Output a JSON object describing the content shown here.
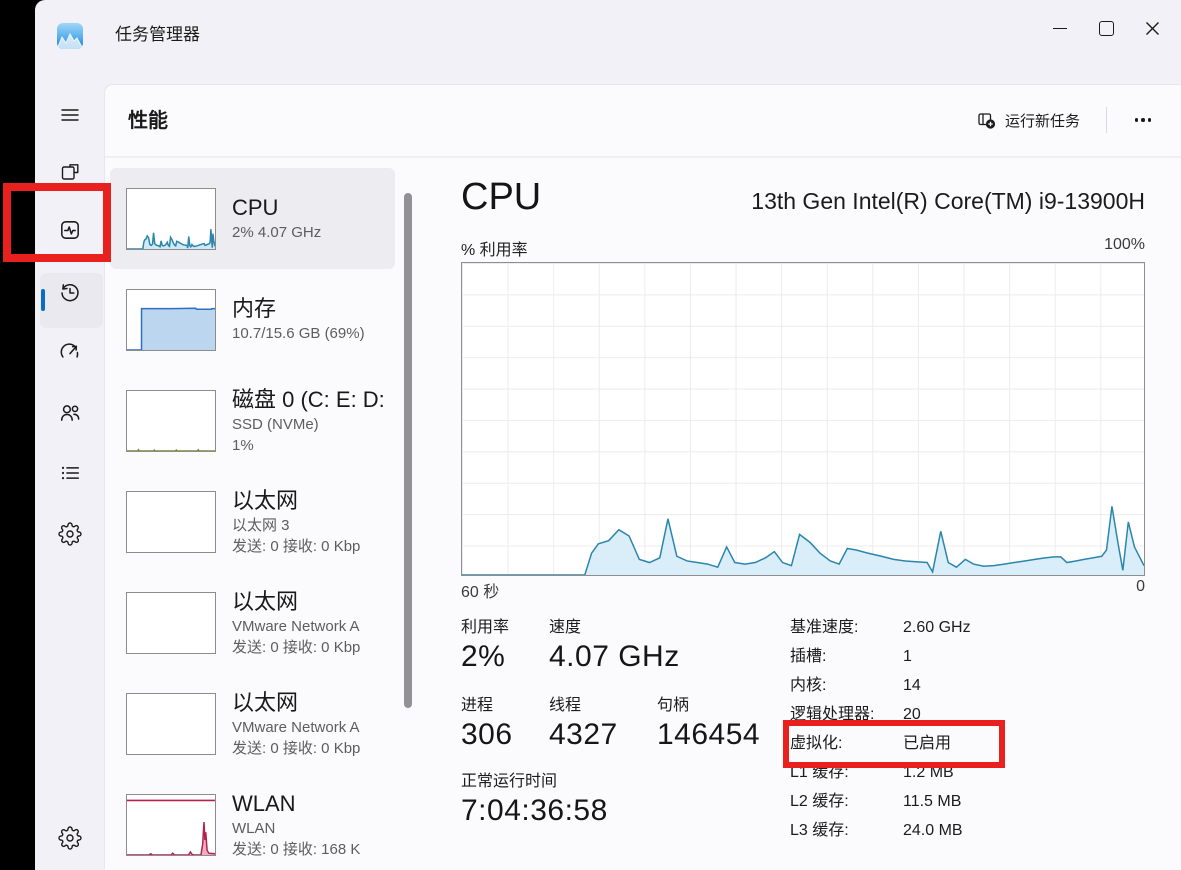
{
  "titlebar": {
    "app_title": "任务管理器",
    "app_icon": "task-manager-logo"
  },
  "window_controls": {
    "icons": [
      "minimize-icon",
      "maximize-icon",
      "close-icon"
    ]
  },
  "header": {
    "page_title": "性能",
    "run_new_task_label": "运行新任务",
    "run_new_task_icon": "new-task-icon",
    "more_icon": "more-options-icon"
  },
  "sidebar": {
    "items": [
      {
        "id": "menu",
        "icon": "hamburger-menu-icon"
      },
      {
        "id": "processes",
        "icon": "processes-icon"
      },
      {
        "id": "performance",
        "icon": "performance-icon",
        "selected": true
      },
      {
        "id": "app-history",
        "icon": "app-history-icon"
      },
      {
        "id": "startup-apps",
        "icon": "startup-apps-icon"
      },
      {
        "id": "users",
        "icon": "users-icon"
      },
      {
        "id": "details",
        "icon": "details-icon"
      },
      {
        "id": "services",
        "icon": "services-icon"
      }
    ],
    "footer_item": {
      "id": "settings",
      "icon": "settings-gear-icon"
    },
    "accent_color": "#0a6cc4"
  },
  "performance_list": {
    "items": [
      {
        "title": "CPU",
        "lines": [
          "2%  4.07 GHz"
        ],
        "selected": true,
        "chart": 1
      },
      {
        "title": "内存",
        "lines": [
          "10.7/15.6 GB (69%)"
        ],
        "chart": 2
      },
      {
        "title": "磁盘 0 (C: E: D:",
        "lines": [
          "SSD (NVMe)",
          "1%"
        ],
        "chart": 3
      },
      {
        "title": "以太网",
        "lines": [
          "以太网 3",
          "发送: 0 接收: 0 Kbp"
        ],
        "chart": 4
      },
      {
        "title": "以太网",
        "lines": [
          "VMware Network A",
          "发送: 0 接收: 0 Kbp"
        ],
        "chart": 5
      },
      {
        "title": "以太网",
        "lines": [
          "VMware Network A",
          "发送: 0 接收: 0 Kbp"
        ],
        "chart": 6
      },
      {
        "title": "WLAN",
        "lines": [
          "WLAN",
          "发送: 0 接收: 168 K"
        ],
        "chart": 7
      }
    ]
  },
  "cpu_page": {
    "title": "CPU",
    "processor_name": "13th Gen Intel(R) Core(TM) i9-13900H",
    "stats": [
      {
        "label": "利用率",
        "value": "2%"
      },
      {
        "label": "速度",
        "value": "4.07 GHz"
      },
      {
        "label": "进程",
        "value": "306"
      },
      {
        "label": "线程",
        "value": "4327"
      },
      {
        "label": "句柄",
        "value": "146454"
      },
      {
        "label": "正常运行时间",
        "value": "7:04:36:58"
      }
    ],
    "details": [
      {
        "label": "基准速度:",
        "value": "2.60 GHz"
      },
      {
        "label": "插槽:",
        "value": "1"
      },
      {
        "label": "内核:",
        "value": "14"
      },
      {
        "label": "逻辑处理器:",
        "value": "20"
      },
      {
        "label": "虚拟化:",
        "value": "已启用"
      },
      {
        "label": "L1 缓存:",
        "value": "1.2 MB"
      },
      {
        "label": "L2 缓存:",
        "value": "11.5 MB"
      },
      {
        "label": "L3 缓存:",
        "value": "24.0 MB"
      }
    ]
  },
  "annotations": {
    "highlight_color": "#e8211f",
    "boxes": [
      {
        "target": "sidebar-performance-item"
      },
      {
        "target": "virtualization-detail-row"
      }
    ]
  },
  "chart_data": [
    {
      "id": "cpu-utilization-main",
      "type": "area",
      "title": "% 利用率",
      "y_max_label": "100%",
      "x_left_label": "60 秒",
      "x_right_label": "0",
      "ylim": [
        0,
        100
      ],
      "x_span_seconds": 60,
      "grid": true,
      "stroke": "#2b85ad",
      "fill": "#d9eef9",
      "points": [
        [
          0,
          0
        ],
        [
          0.18,
          0
        ],
        [
          0.19,
          7
        ],
        [
          0.2,
          10
        ],
        [
          0.215,
          11
        ],
        [
          0.23,
          14.5
        ],
        [
          0.245,
          12.5
        ],
        [
          0.26,
          5
        ],
        [
          0.275,
          4
        ],
        [
          0.29,
          5.5
        ],
        [
          0.302,
          18
        ],
        [
          0.315,
          6
        ],
        [
          0.33,
          4.5
        ],
        [
          0.345,
          4
        ],
        [
          0.36,
          3.5
        ],
        [
          0.375,
          2.5
        ],
        [
          0.388,
          9
        ],
        [
          0.4,
          4
        ],
        [
          0.415,
          3.5
        ],
        [
          0.43,
          4
        ],
        [
          0.445,
          5.5
        ],
        [
          0.458,
          7.5
        ],
        [
          0.47,
          4
        ],
        [
          0.483,
          3
        ],
        [
          0.495,
          13
        ],
        [
          0.51,
          10.5
        ],
        [
          0.525,
          7
        ],
        [
          0.54,
          4.5
        ],
        [
          0.553,
          3.5
        ],
        [
          0.565,
          8.5
        ],
        [
          0.578,
          8
        ],
        [
          0.595,
          7
        ],
        [
          0.615,
          6
        ],
        [
          0.633,
          5
        ],
        [
          0.65,
          4.5
        ],
        [
          0.668,
          4.2
        ],
        [
          0.682,
          4
        ],
        [
          0.69,
          1
        ],
        [
          0.702,
          14
        ],
        [
          0.713,
          4
        ],
        [
          0.725,
          2.5
        ],
        [
          0.738,
          5
        ],
        [
          0.75,
          3.5
        ],
        [
          0.765,
          2.8
        ],
        [
          0.78,
          3
        ],
        [
          0.795,
          3.5
        ],
        [
          0.81,
          4
        ],
        [
          0.825,
          4.5
        ],
        [
          0.84,
          5
        ],
        [
          0.855,
          5.5
        ],
        [
          0.868,
          5.8
        ],
        [
          0.878,
          5.8
        ],
        [
          0.887,
          4
        ],
        [
          0.9,
          4.5
        ],
        [
          0.912,
          5
        ],
        [
          0.925,
          5.5
        ],
        [
          0.938,
          6
        ],
        [
          0.945,
          8
        ],
        [
          0.953,
          22
        ],
        [
          0.962,
          10
        ],
        [
          0.969,
          1.5
        ],
        [
          0.977,
          17
        ],
        [
          0.986,
          9
        ],
        [
          1,
          3
        ]
      ]
    },
    {
      "id": "cpu-mini",
      "type": "area",
      "points_ref": 0,
      "scale": 1.5,
      "stroke": "#2b85ad",
      "fill": "#cfe9f6"
    },
    {
      "id": "memory-mini",
      "type": "area",
      "stroke": "#2f6fc1",
      "fill": "#bcd6f0",
      "points": [
        [
          0,
          0
        ],
        [
          0.165,
          0
        ],
        [
          0.165,
          69
        ],
        [
          0.5,
          69
        ],
        [
          0.78,
          69.5
        ],
        [
          0.79,
          68
        ],
        [
          0.96,
          68
        ],
        [
          0.965,
          69
        ],
        [
          1,
          69
        ]
      ]
    },
    {
      "id": "disk-mini",
      "type": "area",
      "stroke": "#7d8b2a",
      "fill": "none",
      "points": [
        [
          0,
          0
        ],
        [
          0.12,
          0
        ],
        [
          0.13,
          2
        ],
        [
          0.14,
          0
        ],
        [
          0.3,
          0
        ],
        [
          0.31,
          1.5
        ],
        [
          0.32,
          0
        ],
        [
          0.55,
          0
        ],
        [
          0.56,
          1.5
        ],
        [
          0.57,
          0
        ],
        [
          0.8,
          0
        ],
        [
          0.81,
          2
        ],
        [
          0.82,
          0
        ],
        [
          1,
          0
        ]
      ]
    },
    {
      "id": "ethernet3-mini",
      "type": "area",
      "stroke": "#a87230",
      "fill": "none",
      "points": []
    },
    {
      "id": "ethernet-vmware1-mini",
      "type": "area",
      "stroke": "#a87230",
      "fill": "none",
      "points": []
    },
    {
      "id": "ethernet-vmware2-mini",
      "type": "area",
      "stroke": "#a87230",
      "fill": "none",
      "points": []
    },
    {
      "id": "wlan-mini",
      "type": "area",
      "stroke": "#b3214e",
      "fill": "#f0aec3",
      "top_line_pct": 91,
      "points": [
        [
          0,
          0
        ],
        [
          0.25,
          0
        ],
        [
          0.27,
          2
        ],
        [
          0.29,
          0
        ],
        [
          0.5,
          0
        ],
        [
          0.52,
          3
        ],
        [
          0.54,
          0
        ],
        [
          0.7,
          0
        ],
        [
          0.72,
          5
        ],
        [
          0.74,
          1
        ],
        [
          0.76,
          0
        ],
        [
          0.84,
          0
        ],
        [
          0.86,
          18
        ],
        [
          0.875,
          55
        ],
        [
          0.885,
          25
        ],
        [
          0.895,
          38
        ],
        [
          0.91,
          8
        ],
        [
          0.93,
          3
        ],
        [
          1,
          2
        ]
      ]
    }
  ]
}
